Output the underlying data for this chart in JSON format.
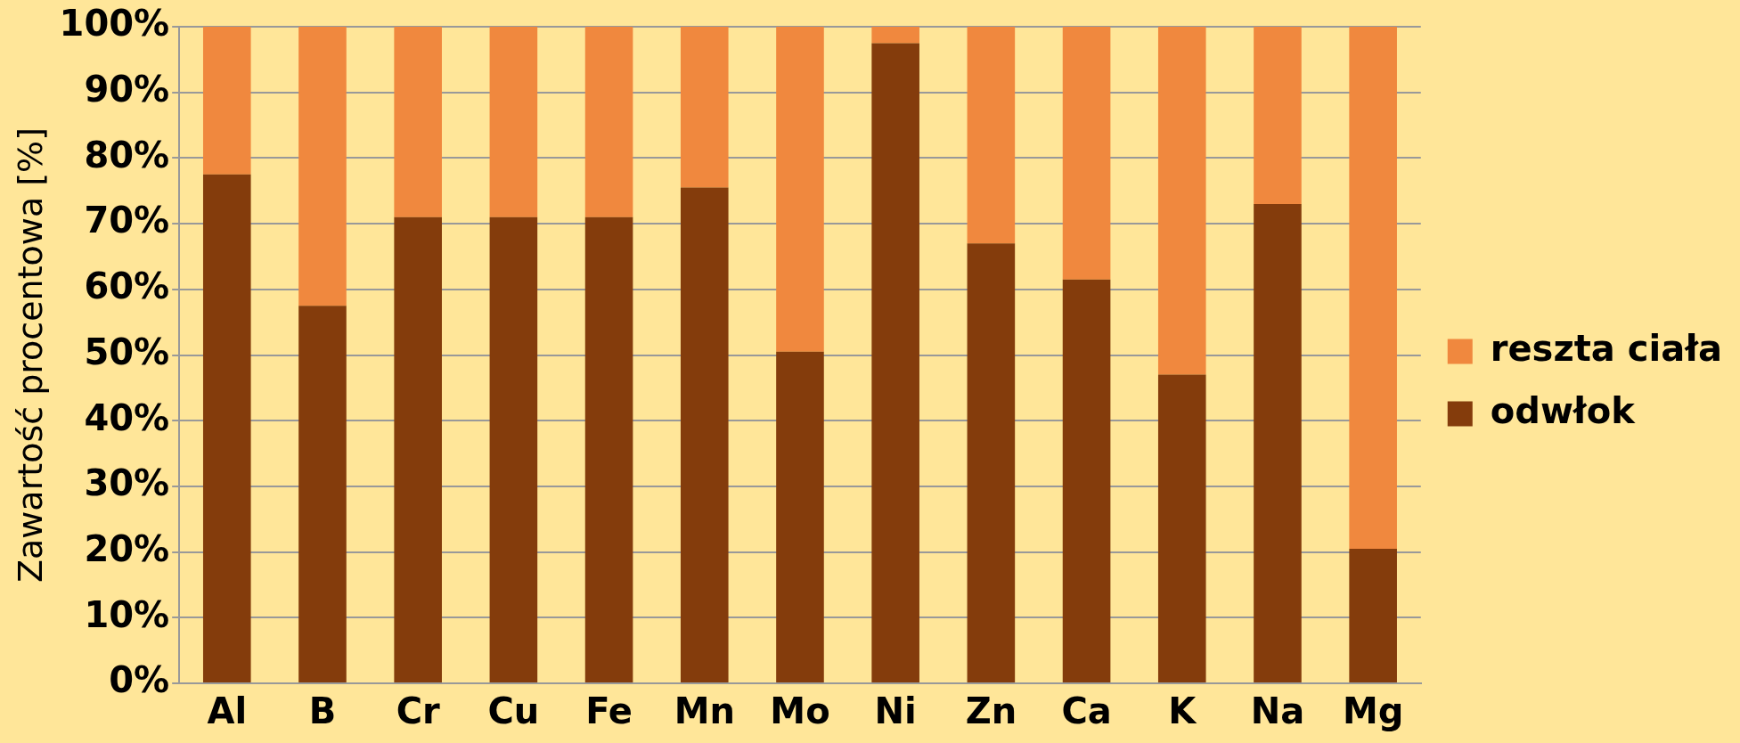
{
  "chart_data": {
    "type": "bar",
    "stacked": true,
    "ylabel": "Zawartość procentowa [%]",
    "categories": [
      "Al",
      "B",
      "Cr",
      "Cu",
      "Fe",
      "Mn",
      "Mo",
      "Ni",
      "Zn",
      "Ca",
      "K",
      "Na",
      "Mg"
    ],
    "series": [
      {
        "name": "odwłok",
        "color": "#843c0c",
        "values": [
          77.5,
          57.5,
          71,
          71,
          71,
          75.5,
          50.5,
          97.5,
          67,
          61.5,
          47,
          73,
          20.5
        ]
      },
      {
        "name": "reszta ciała",
        "color": "#f0883e",
        "values": [
          22.5,
          42.5,
          29,
          29,
          29,
          24.5,
          49.5,
          2.5,
          33,
          38.5,
          53,
          27,
          79.5
        ]
      }
    ],
    "ylim": [
      0,
      100
    ],
    "yticks": [
      {
        "value": 0,
        "label": "0%"
      },
      {
        "value": 10,
        "label": "10%"
      },
      {
        "value": 20,
        "label": "20%"
      },
      {
        "value": 30,
        "label": "30%"
      },
      {
        "value": 40,
        "label": "40%"
      },
      {
        "value": 50,
        "label": "50%"
      },
      {
        "value": 60,
        "label": "60%"
      },
      {
        "value": 70,
        "label": "70%"
      },
      {
        "value": 80,
        "label": "80%"
      },
      {
        "value": 90,
        "label": "90%"
      },
      {
        "value": 100,
        "label": "100%"
      }
    ],
    "grid": "y",
    "legend": "right"
  }
}
